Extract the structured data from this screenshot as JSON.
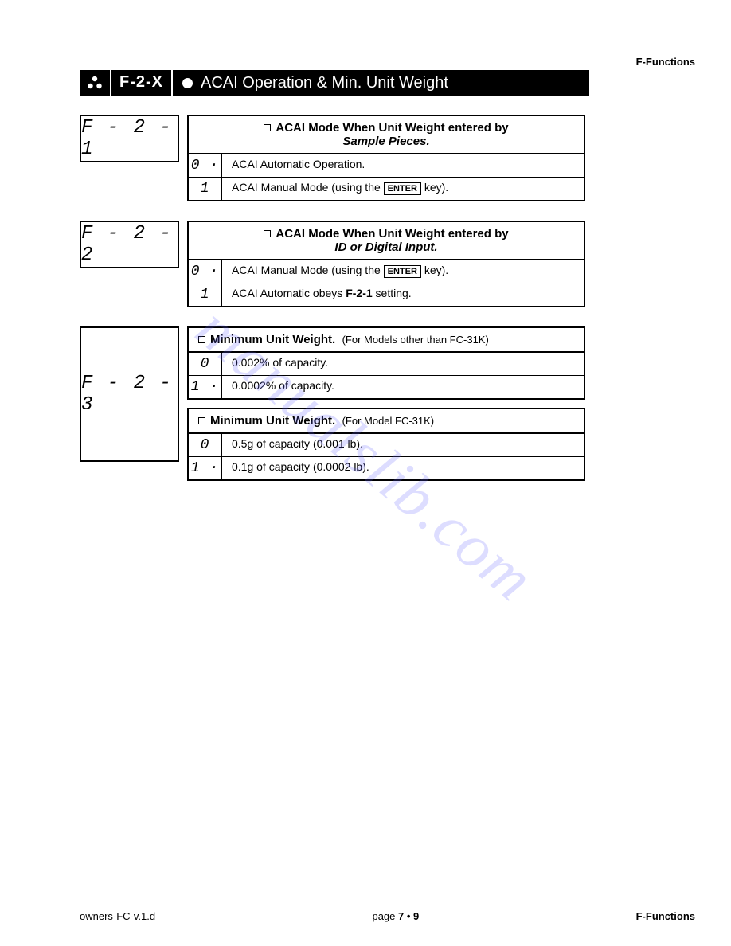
{
  "header_label": "F-Functions",
  "title_code": "F-2-X",
  "title_text": "ACAI Operation & Min. Unit Weight",
  "sections": [
    {
      "seg": "F - 2 - 1",
      "tables": [
        {
          "header_prefix": "ACAI Mode When Unit Weight entered by",
          "header_suffix": "Sample Pieces.",
          "header_suffix_style": "italic",
          "rows": [
            {
              "code": "0 ·",
              "desc": "ACAI Automatic Operation."
            },
            {
              "code": "1",
              "desc": "ACAI Manual Mode (using the |ENTER| key)."
            }
          ]
        }
      ]
    },
    {
      "seg": "F - 2 - 2",
      "tables": [
        {
          "header_prefix": "ACAI Mode When Unit Weight entered by",
          "header_suffix": "ID or Digital Input.",
          "header_suffix_style": "italic",
          "rows": [
            {
              "code": "0 ·",
              "desc": "ACAI Manual Mode  (using the |ENTER| key)."
            },
            {
              "code": "1",
              "desc": "ACAI Automatic obeys **F-2-1** setting."
            }
          ]
        }
      ]
    },
    {
      "seg": "F - 2 - 3",
      "tall": true,
      "tables": [
        {
          "header_prefix": "Minimum Unit Weight.",
          "header_suffix": "(For Models other than FC-31K)",
          "header_suffix_style": "small",
          "rows": [
            {
              "code": "0",
              "desc": "0.002% of capacity."
            },
            {
              "code": "1 ·",
              "desc": "0.0002% of capacity."
            }
          ]
        },
        {
          "header_prefix": "Minimum Unit Weight.",
          "header_suffix": "(For Model FC-31K)",
          "header_suffix_style": "small",
          "rows": [
            {
              "code": "0",
              "desc": "0.5g of capacity (0.001 lb)."
            },
            {
              "code": "1 ·",
              "desc": "0.1g of capacity (0.0002 lb)."
            }
          ]
        }
      ]
    }
  ],
  "watermark": "manualslib.com",
  "footer_left": "owners-FC-v.1.d",
  "footer_center_prefix": "page ",
  "footer_center_page": "7 • 9",
  "footer_right": "F-Functions"
}
